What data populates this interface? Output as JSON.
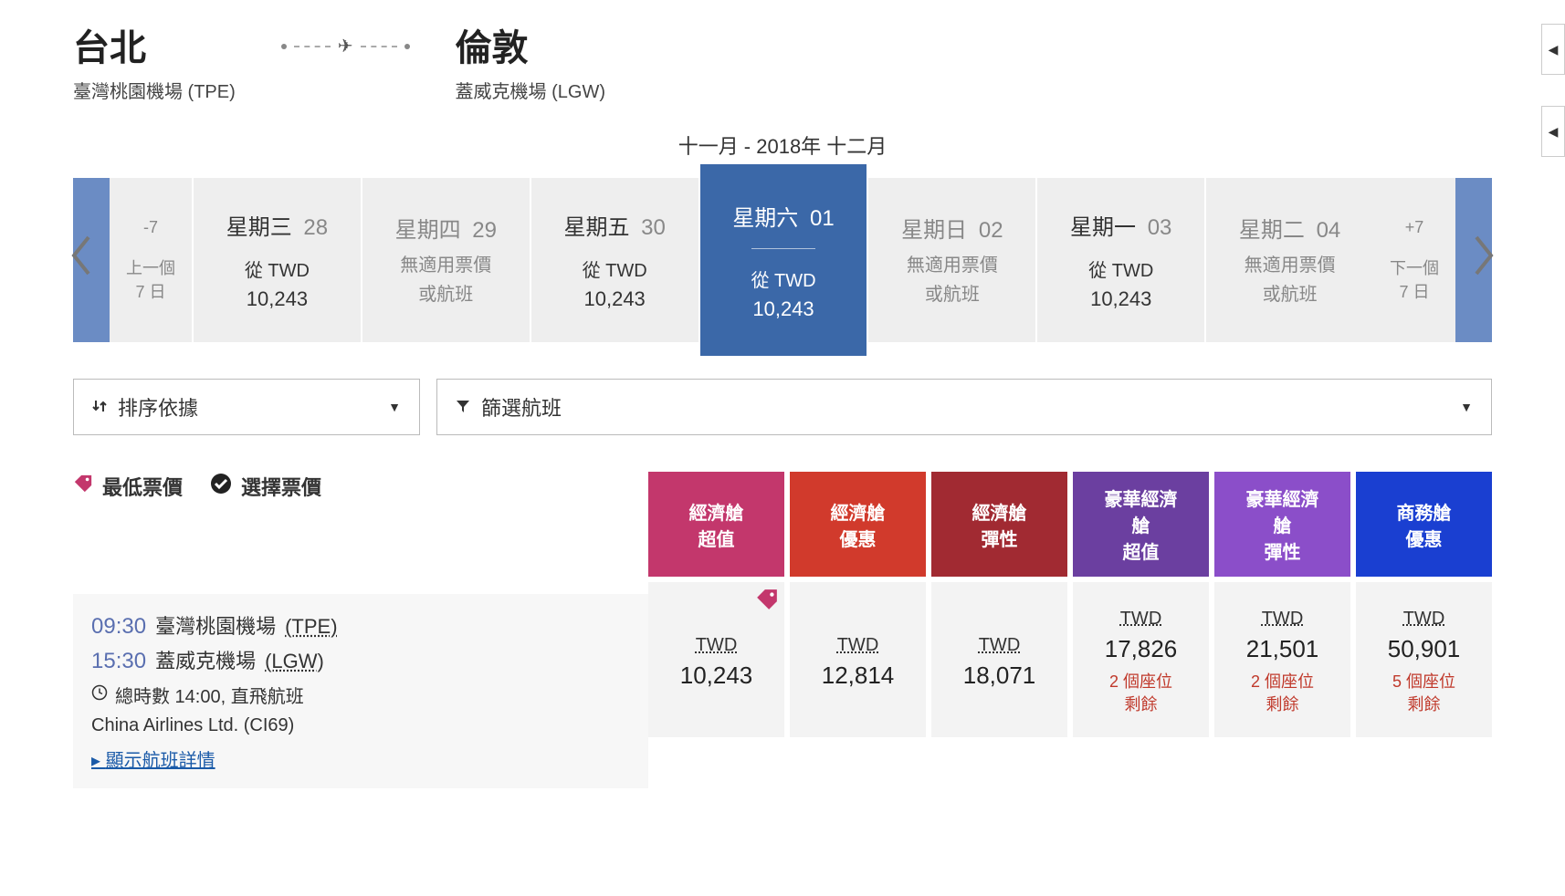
{
  "route": {
    "origin_city": "台北",
    "origin_airport": "臺灣桃園機場 (TPE)",
    "dest_city": "倫敦",
    "dest_airport": "蓋威克機場 (LGW)"
  },
  "month_label": "十一月 - 2018年 十二月",
  "nav": {
    "prev7_num": "-7",
    "prev7_line1": "上一個",
    "prev7_line2": "7 日",
    "next7_num": "+7",
    "next7_line1": "下一個",
    "next7_line2": "7 日"
  },
  "dates": [
    {
      "day": "星期三",
      "num": "28",
      "from": "從 TWD",
      "price": "10,243",
      "available": true,
      "selected": false,
      "dim": false
    },
    {
      "day": "星期四",
      "num": "29",
      "na_l1": "無適用票價",
      "na_l2": "或航班",
      "available": false,
      "selected": false,
      "dim": true
    },
    {
      "day": "星期五",
      "num": "30",
      "from": "從 TWD",
      "price": "10,243",
      "available": true,
      "selected": false,
      "dim": false
    },
    {
      "day": "星期六",
      "num": "01",
      "from": "從 TWD",
      "price": "10,243",
      "available": true,
      "selected": true,
      "dim": false
    },
    {
      "day": "星期日",
      "num": "02",
      "na_l1": "無適用票價",
      "na_l2": "或航班",
      "available": false,
      "selected": false,
      "dim": true
    },
    {
      "day": "星期一",
      "num": "03",
      "from": "從 TWD",
      "price": "10,243",
      "available": true,
      "selected": false,
      "dim": false
    },
    {
      "day": "星期二",
      "num": "04",
      "na_l1": "無適用票價",
      "na_l2": "或航班",
      "available": false,
      "selected": false,
      "dim": true
    }
  ],
  "controls": {
    "sort_label": "排序依據",
    "filter_label": "篩選航班"
  },
  "legend": {
    "lowest": "最低票價",
    "selected": "選擇票價"
  },
  "fare_headers": [
    {
      "l1": "經濟艙",
      "l2": "超值",
      "color": "#c3376c"
    },
    {
      "l1": "經濟艙",
      "l2": "優惠",
      "color": "#d13a2c"
    },
    {
      "l1": "經濟艙",
      "l2": "彈性",
      "color": "#a12a32"
    },
    {
      "l1": "豪華經濟",
      "l2": "艙",
      "l3": "超值",
      "color": "#6b3fa0"
    },
    {
      "l1": "豪華經濟",
      "l2": "艙",
      "l3": "彈性",
      "color": "#8b4ec9"
    },
    {
      "l1": "商務艙",
      "l2": "優惠",
      "color": "#1a3fd1"
    }
  ],
  "flight": {
    "dep_time": "09:30",
    "dep_airport": "臺灣桃園機場",
    "dep_code": "(TPE)",
    "arr_time": "15:30",
    "arr_airport": "蓋威克機場",
    "arr_code": "(LGW)",
    "duration": "總時數 14:00, 直飛航班",
    "carrier": "China Airlines Ltd. (CI69)",
    "details": "顯示航班詳情"
  },
  "fares": [
    {
      "cur": "TWD",
      "amt": "10,243",
      "lowest": true
    },
    {
      "cur": "TWD",
      "amt": "12,814"
    },
    {
      "cur": "TWD",
      "amt": "18,071"
    },
    {
      "cur": "TWD",
      "amt": "17,826",
      "seats_l1": "2 個座位",
      "seats_l2": "剩餘"
    },
    {
      "cur": "TWD",
      "amt": "21,501",
      "seats_l1": "2 個座位",
      "seats_l2": "剩餘"
    },
    {
      "cur": "TWD",
      "amt": "50,901",
      "seats_l1": "5 個座位",
      "seats_l2": "剩餘"
    }
  ],
  "currency_label": "TWD",
  "colors": {
    "tag": "#c3376c"
  }
}
